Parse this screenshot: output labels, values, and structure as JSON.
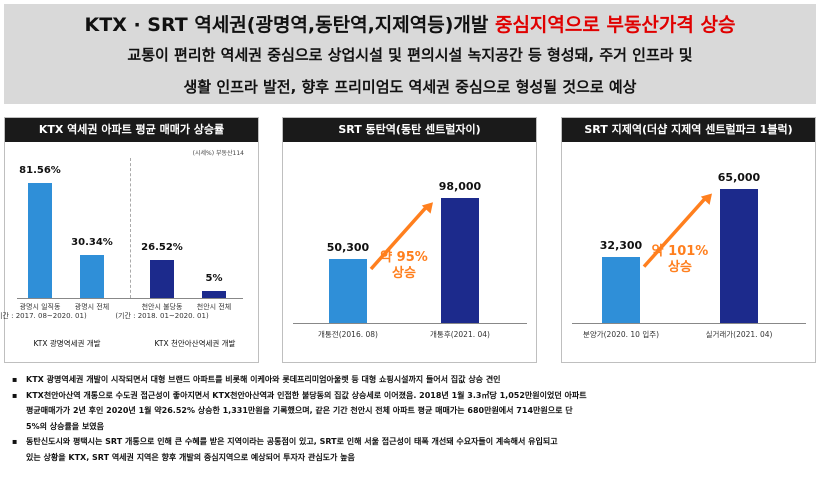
{
  "header": {
    "title_black1": "KTX · SRT 역세권(광명역,동탄역,지제역등)개발 ",
    "title_red": "중심지역으로 부동산가격 상승",
    "subtitle_line1": "교통이 편리한 역세권 중심으로 상업시설 및 편의시설 녹지공간 등 형성돼, 주거 인프라 및",
    "subtitle_line2": "생활 인프라 발전, 향후 프리미엄도 역세권 중심으로 형성될 것으로 예상"
  },
  "colors": {
    "blue_light": "#2f8fd8",
    "blue_dark": "#1c2a8c",
    "orange": "#ff7f1e",
    "title_bar": "#1a1a1a",
    "header_bg": "#d9d9d9",
    "red": "#e00000"
  },
  "chart_data": [
    {
      "type": "bar",
      "title": "KTX 역세권 아파트 평균 매매가 상승률",
      "unit_note": "(시세%) 부동산114",
      "categories": [
        "광명시 일직동\n(기간 : 2017. 08~2020. 01)",
        "광명시 전체",
        "천안시 불당동\n(기간 : 2018. 01~2020. 01)",
        "천안시 전체"
      ],
      "values": [
        81.56,
        30.34,
        26.52,
        5
      ],
      "value_labels": [
        "81.56%",
        "30.34%",
        "26.52%",
        "5%"
      ],
      "bar_colors": [
        "#2f8fd8",
        "#2f8fd8",
        "#1c2a8c",
        "#1c2a8c"
      ],
      "groups": [
        "KTX 광명역세권 개발",
        "KTX 천안아산역세권 개발"
      ],
      "ylim": [
        0,
        100
      ]
    },
    {
      "type": "bar",
      "title": "SRT 동탄역(동탄 센트럴자이)",
      "categories": [
        "개통전(2016. 08)",
        "개통후(2021. 04)"
      ],
      "values": [
        50300,
        98000
      ],
      "value_labels": [
        "50,300",
        "98,000"
      ],
      "bar_colors": [
        "#2f8fd8",
        "#1c2a8c"
      ],
      "annotation_line1": "약 95%",
      "annotation_line2": "상승",
      "ylim": [
        0,
        110000
      ]
    },
    {
      "type": "bar",
      "title": "SRT 지제역(더샵 지제역 센트럴파크 1블럭)",
      "categories": [
        "분양가(2020. 10 입주)",
        "실거래가(2021. 04)"
      ],
      "values": [
        32300,
        65000
      ],
      "value_labels": [
        "32,300",
        "65,000"
      ],
      "bar_colors": [
        "#2f8fd8",
        "#1c2a8c"
      ],
      "annotation_line1": "약 101%",
      "annotation_line2": "상승",
      "ylim": [
        0,
        73000
      ]
    }
  ],
  "bullets": [
    {
      "marker": "▪",
      "lines": [
        "KTX 광명역세권 개발이 시작되면서 대형 브랜드 아파트를 비롯해 이케아와 롯데프리미엄아울렛 등 대형 쇼핑시설까지 들어서 집값 상승 견인"
      ]
    },
    {
      "marker": "▪",
      "lines": [
        "KTX천안아산역 개통으로 수도권 접근성이 좋아지면서 KTX천안아산역과 인접한 불당동의 집값 상승세로 이어졌음. 2018년 1월 3.3㎡당 1,052만원이었던 아파트",
        "평균매매가가 2년 후인 2020년 1월 약26.52% 상승한 1,331만원을 기록했으며, 같은 기간 천안시 전체 아파트 평균 매매가는 680만원에서 714만원으로 단",
        "5%의 상승률을 보였음"
      ]
    },
    {
      "marker": "▪",
      "lines": [
        "동탄신도시와 평택시는 SRT 개통으로 인해 큰 수혜를 받은 지역이라는 공통점이 있고, SRT로 인해 서울 접근성이 태폭 개선돼 수요자들이 계속해서 유입되고",
        "있는 상황을  KTX, SRT 역세권 지역은 향후 개발의 중심지역으로 예상되어 투자자 관심도가 높음"
      ]
    }
  ]
}
